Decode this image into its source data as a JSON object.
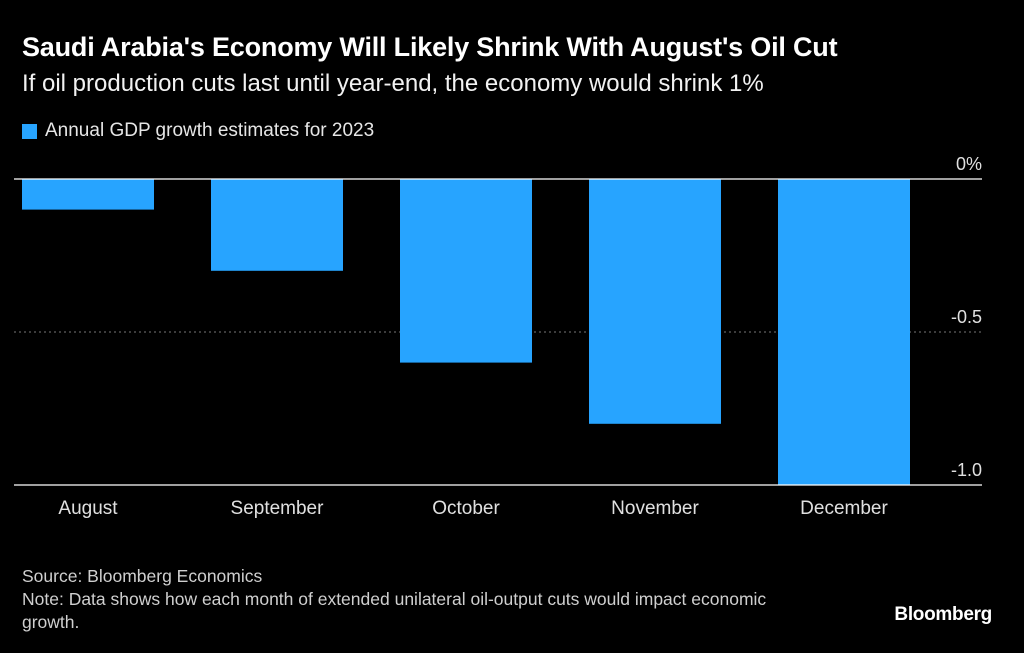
{
  "header": {
    "title": "Saudi Arabia's Economy Will Likely Shrink With August's Oil Cut",
    "subtitle": "If oil production cuts last until year-end, the economy would shrink 1%"
  },
  "chart_data": {
    "type": "bar",
    "categories": [
      "August",
      "September",
      "October",
      "November",
      "December"
    ],
    "series": [
      {
        "name": "Annual GDP growth estimates for 2023",
        "values": [
          -0.1,
          -0.3,
          -0.6,
          -0.8,
          -1.0
        ]
      }
    ],
    "ylim": [
      -1.0,
      0
    ],
    "yticks": [
      {
        "value": 0,
        "label": "0%"
      },
      {
        "value": -0.5,
        "label": "-0.5"
      },
      {
        "value": -1.0,
        "label": "-1.0"
      }
    ],
    "xlabel": "",
    "ylabel": "",
    "grid": "dotted horizontal",
    "legend_position": "top-left",
    "colors": {
      "bar": "#27a4ff",
      "background": "#000000",
      "axis": "#ffffff",
      "grid": "#777777",
      "tick_text": "#e0e0e0"
    }
  },
  "footer": {
    "source": "Source: Bloomberg Economics",
    "note": "Note: Data shows how each month of extended unilateral oil-output cuts would impact economic growth.",
    "brand": "Bloomberg"
  }
}
